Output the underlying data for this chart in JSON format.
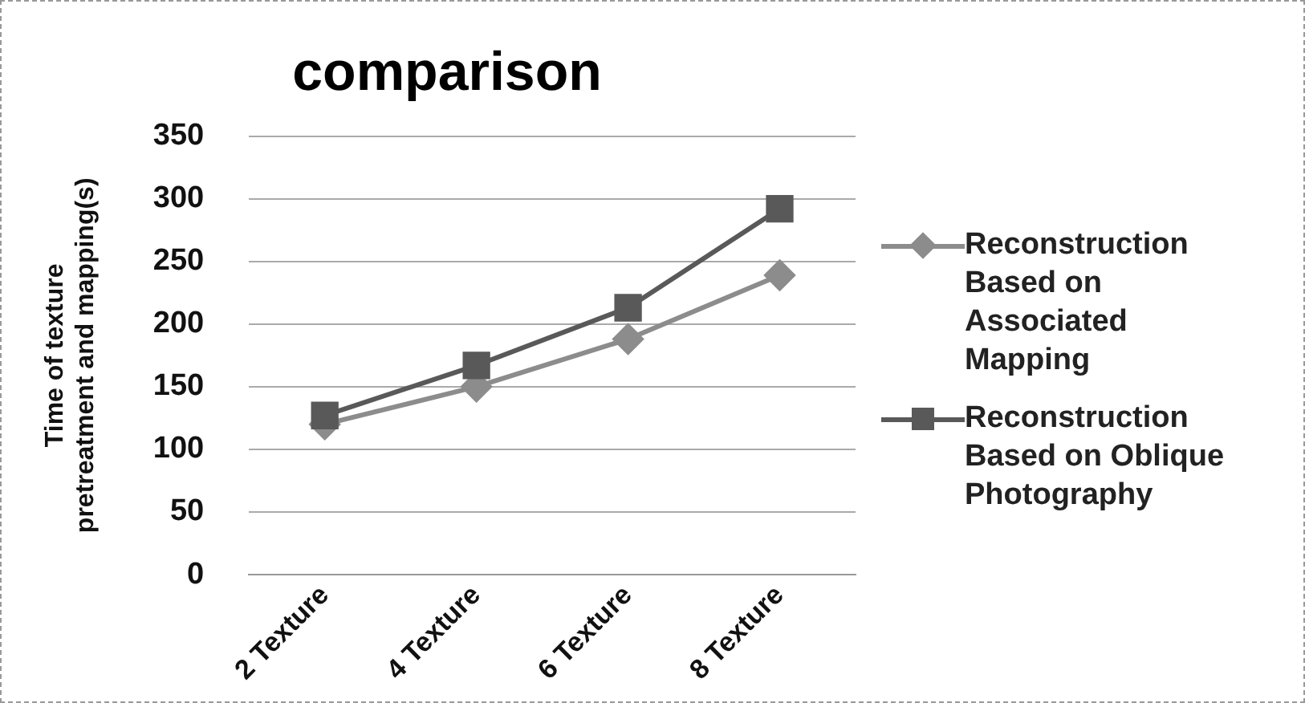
{
  "chart_data": {
    "type": "line",
    "title": "comparison",
    "ylabel": "Time of texture pretreatment and mapping(s)",
    "categories": [
      "2 Texture",
      "4 Texture",
      "6 Texture",
      "8 Texture"
    ],
    "series": [
      {
        "name": "Reconstruction Based on Associated Mapping",
        "color": "#8c8c8c",
        "marker": "diamond",
        "values": [
          120,
          150,
          188,
          239
        ]
      },
      {
        "name": "Reconstruction Based on Oblique Photography",
        "color": "#595959",
        "marker": "square",
        "values": [
          127,
          167,
          213,
          292
        ]
      }
    ],
    "ylim": [
      0,
      350
    ],
    "yticks": [
      0,
      50,
      100,
      150,
      200,
      250,
      300,
      350
    ],
    "grid": "y",
    "legend": "right",
    "line_style": "solid"
  }
}
